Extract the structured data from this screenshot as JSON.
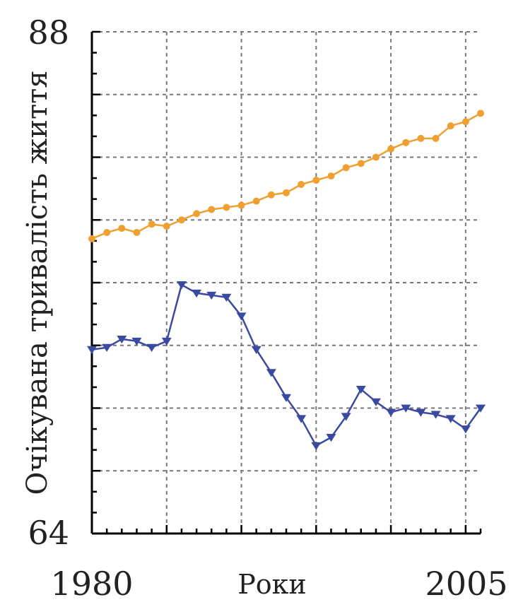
{
  "chart_data": {
    "type": "line",
    "title": "",
    "xlabel": "Роки",
    "ylabel": "Очікувана тривалість життя",
    "xlim": [
      1980,
      2006
    ],
    "ylim": [
      64,
      88
    ],
    "x_tick_labels": [
      "1980",
      "2005"
    ],
    "y_tick_labels": [
      "88",
      "64"
    ],
    "grid": true,
    "series": [
      {
        "color": "#f0a030",
        "marker": "circle",
        "x": [
          1980,
          1981,
          1982,
          1983,
          1984,
          1985,
          1986,
          1987,
          1988,
          1989,
          1990,
          1991,
          1992,
          1993,
          1994,
          1995,
          1996,
          1997,
          1998,
          1999,
          2000,
          2001,
          2002,
          2003,
          2004,
          2005,
          2006
        ],
        "values": [
          78.1,
          78.4,
          78.6,
          78.4,
          78.8,
          78.7,
          79.0,
          79.3,
          79.5,
          79.6,
          79.7,
          79.9,
          80.2,
          80.3,
          80.7,
          80.9,
          81.1,
          81.5,
          81.7,
          82.0,
          82.4,
          82.7,
          82.9,
          82.9,
          83.5,
          83.7,
          84.1
        ]
      },
      {
        "color": "#3a4aa0",
        "marker": "triangle-down",
        "x": [
          1980,
          1981,
          1982,
          1983,
          1984,
          1985,
          1986,
          1987,
          1988,
          1989,
          1990,
          1991,
          1992,
          1993,
          1994,
          1995,
          1996,
          1997,
          1998,
          1999,
          2000,
          2001,
          2002,
          2003,
          2004,
          2005,
          2006
        ],
        "values": [
          72.8,
          72.9,
          73.3,
          73.2,
          72.9,
          73.2,
          75.9,
          75.5,
          75.4,
          75.3,
          74.4,
          72.8,
          71.7,
          70.5,
          69.5,
          68.2,
          68.6,
          69.6,
          70.9,
          70.3,
          69.8,
          70.0,
          69.8,
          69.7,
          69.5,
          69.0,
          70.0
        ]
      }
    ]
  }
}
